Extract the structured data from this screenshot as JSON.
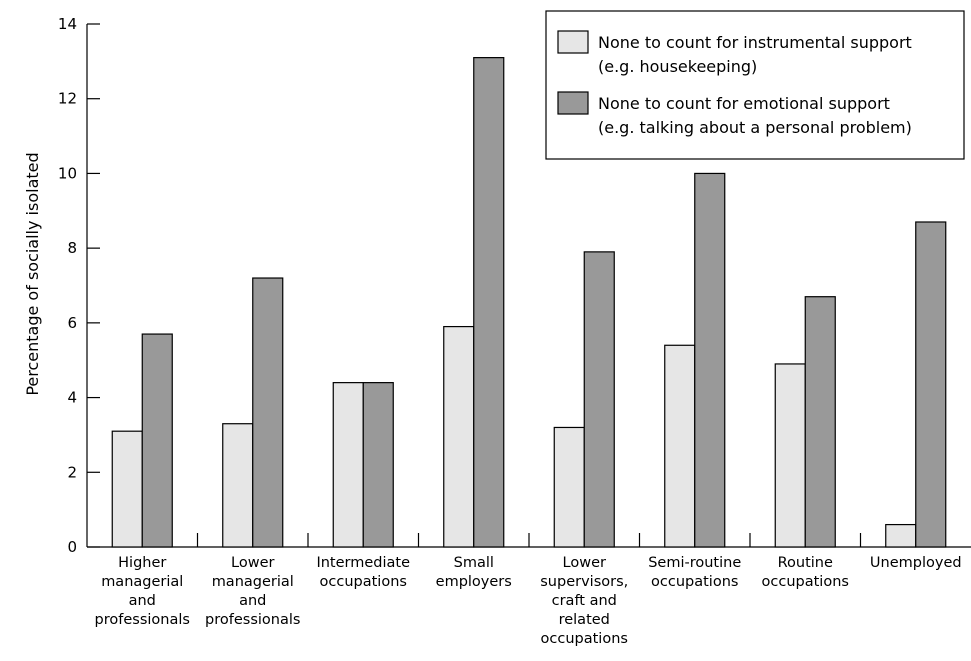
{
  "chart_data": {
    "type": "bar",
    "ylabel": "Percentage of socially isolated",
    "xlabel": "",
    "ylim": [
      0,
      14
    ],
    "yticks": [
      0,
      2,
      4,
      6,
      8,
      10,
      12,
      14
    ],
    "categories": [
      [
        "Higher",
        "managerial",
        "and",
        "professionals"
      ],
      [
        "Lower",
        "managerial",
        "and",
        "professionals"
      ],
      [
        "Intermediate",
        "occupations"
      ],
      [
        "Small",
        "employers"
      ],
      [
        "Lower",
        "supervisors,",
        "craft and",
        "related",
        "occupations"
      ],
      [
        "Semi-routine",
        "occupations"
      ],
      [
        "Routine",
        "occupations"
      ],
      [
        "Unemployed"
      ]
    ],
    "series": [
      {
        "name": [
          "None to count for instrumental support",
          "(e.g. housekeeping)"
        ],
        "color": "#e6e6e6",
        "values": [
          3.1,
          3.3,
          4.4,
          5.9,
          3.2,
          5.4,
          4.9,
          0.6
        ]
      },
      {
        "name": [
          "None to count for emotional support",
          "(e.g. talking about a personal problem)"
        ],
        "color": "#999999",
        "values": [
          5.7,
          7.2,
          4.4,
          13.1,
          7.9,
          10.0,
          6.7,
          8.7
        ]
      }
    ],
    "legend_position": "top-right",
    "grid": false
  }
}
